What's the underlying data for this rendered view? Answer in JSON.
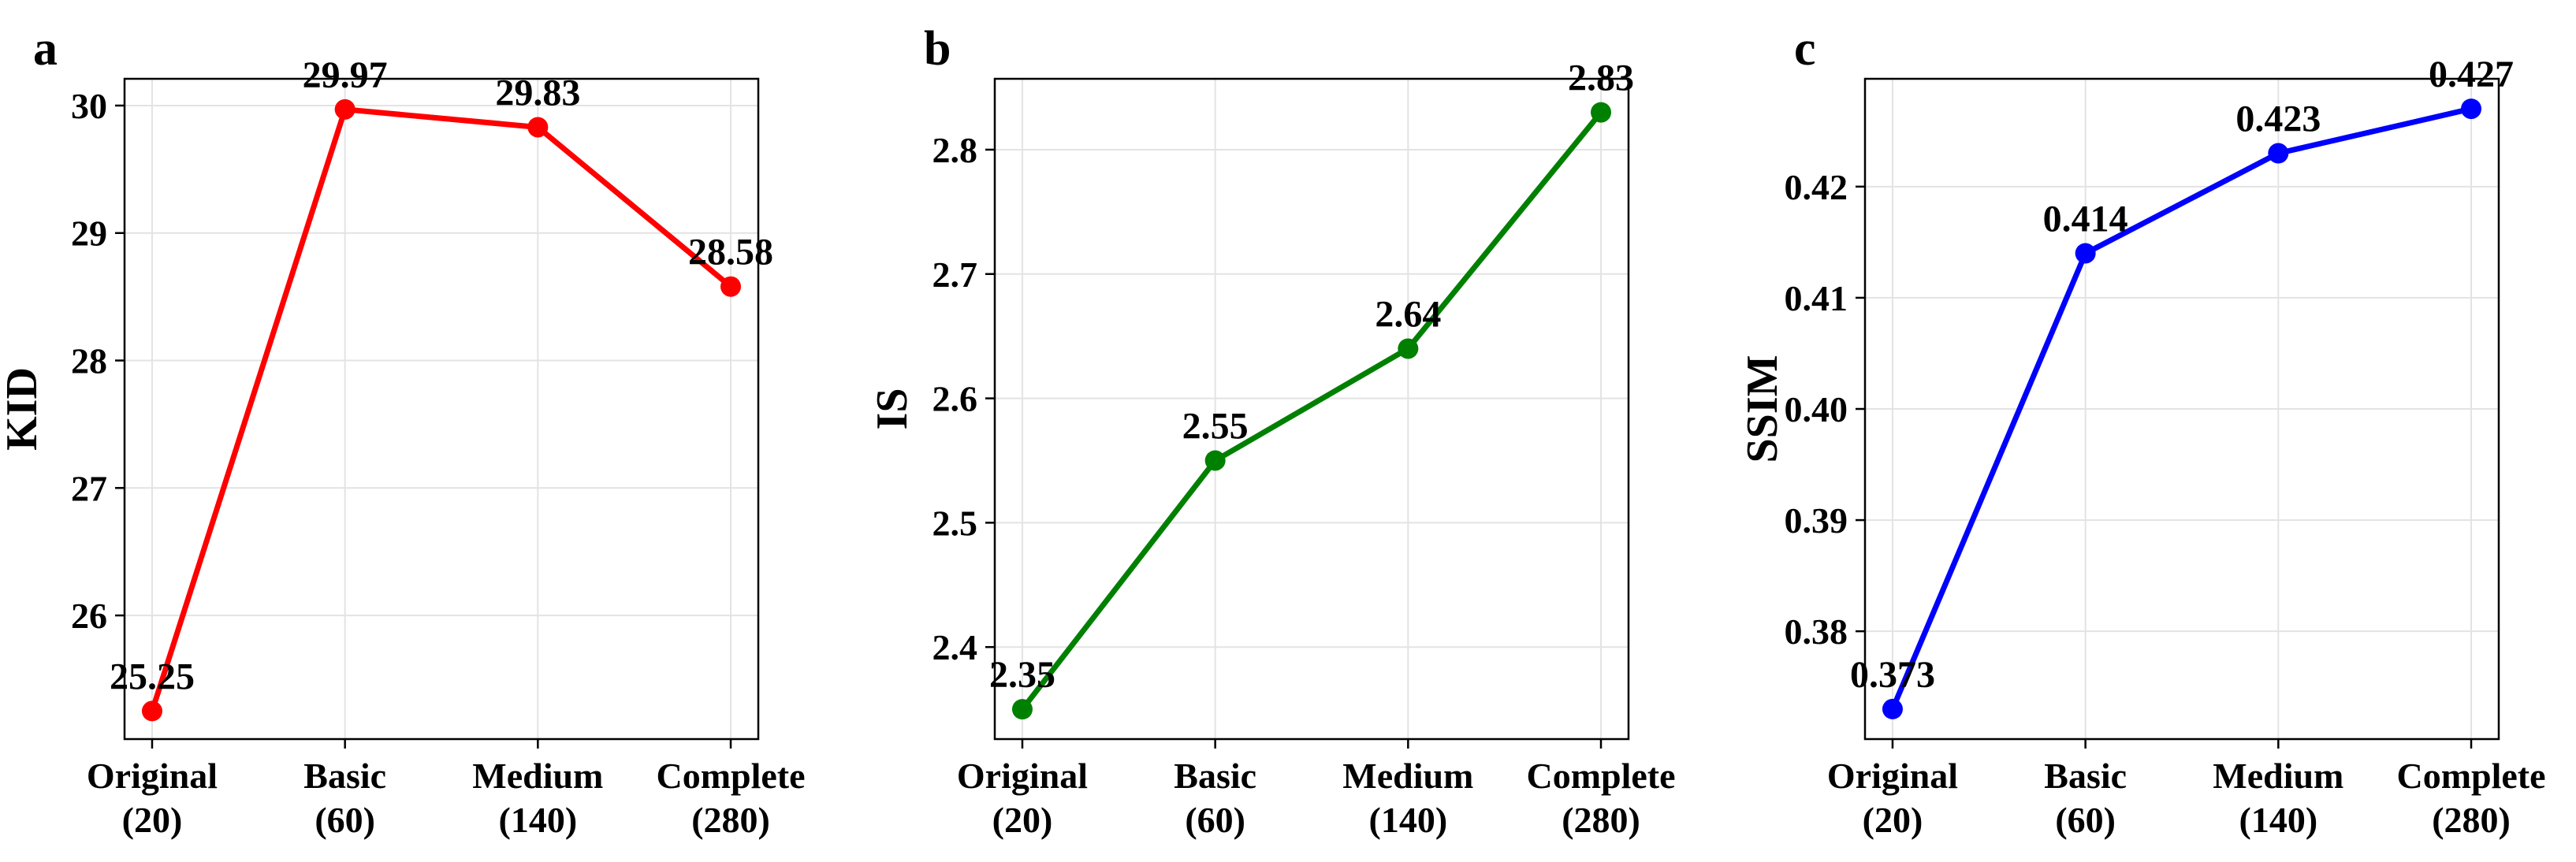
{
  "chart_data": [
    {
      "type": "line",
      "panel_label": "a",
      "ylabel": "KID",
      "categories": [
        "Original\n(20)",
        "Basic\n(60)",
        "Medium\n(140)",
        "Complete\n(280)"
      ],
      "series": [
        {
          "color": "#ff0000",
          "values": [
            25.25,
            29.97,
            29.83,
            28.58
          ]
        }
      ],
      "data_labels": [
        "25.25",
        "29.97",
        "29.83",
        "28.58"
      ],
      "ylim": [
        25.03,
        30.21
      ],
      "yticks": [
        26,
        27,
        28,
        29,
        30
      ],
      "ytick_labels": [
        "26",
        "27",
        "28",
        "29",
        "30"
      ],
      "grid": true
    },
    {
      "type": "line",
      "panel_label": "b",
      "ylabel": "IS",
      "categories": [
        "Original\n(20)",
        "Basic\n(60)",
        "Medium\n(140)",
        "Complete\n(280)"
      ],
      "series": [
        {
          "color": "#008000",
          "values": [
            2.35,
            2.55,
            2.64,
            2.83
          ]
        }
      ],
      "data_labels": [
        "2.35",
        "2.55",
        "2.64",
        "2.83"
      ],
      "ylim": [
        2.326,
        2.857
      ],
      "yticks": [
        2.4,
        2.5,
        2.6,
        2.7,
        2.8
      ],
      "ytick_labels": [
        "2.4",
        "2.5",
        "2.6",
        "2.7",
        "2.8"
      ],
      "grid": true
    },
    {
      "type": "line",
      "panel_label": "c",
      "ylabel": "SSIM",
      "categories": [
        "Original\n(20)",
        "Basic\n(60)",
        "Medium\n(140)",
        "Complete\n(280)"
      ],
      "series": [
        {
          "color": "#0000ff",
          "values": [
            0.373,
            0.414,
            0.423,
            0.427
          ]
        }
      ],
      "data_labels": [
        "0.373",
        "0.414",
        "0.423",
        "0.427"
      ],
      "ylim": [
        0.3703,
        0.4297
      ],
      "yticks": [
        0.38,
        0.39,
        0.4,
        0.41,
        0.42
      ],
      "ytick_labels": [
        "0.38",
        "0.39",
        "0.40",
        "0.41",
        "0.42"
      ],
      "grid": true
    }
  ]
}
